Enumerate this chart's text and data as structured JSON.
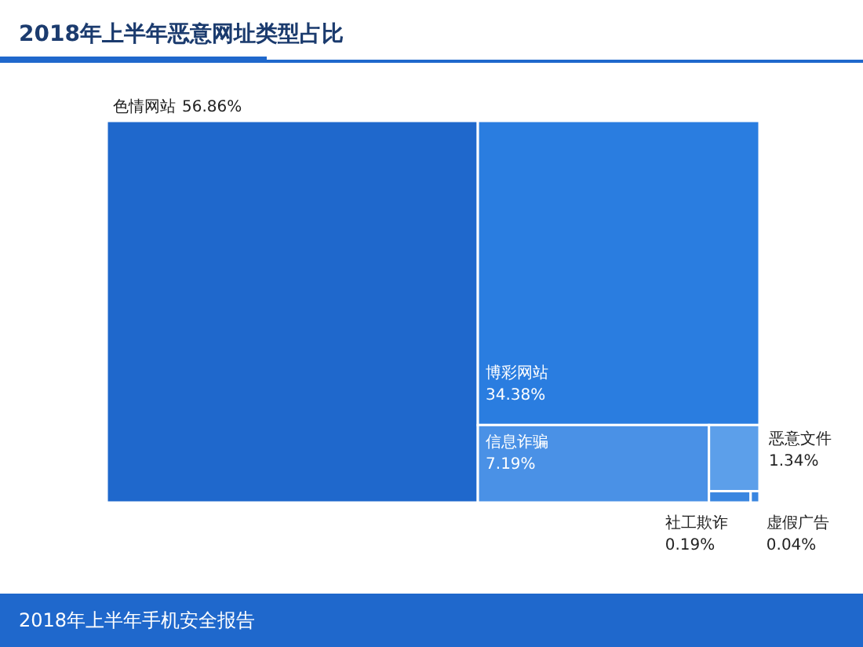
{
  "chart_data": {
    "type": "other",
    "title": "2018年上半年恶意网址类型占比",
    "categories": [
      "色情网站",
      "博彩网站",
      "信息诈骗",
      "恶意文件",
      "社工欺诈",
      "虚假广告"
    ],
    "values": [
      56.86,
      34.38,
      7.19,
      1.34,
      0.19,
      0.04
    ],
    "value_labels": [
      "56.86%",
      "34.38%",
      "7.19%",
      "1.34%",
      "0.19%",
      "0.04%"
    ],
    "colors": [
      "#1f68cc",
      "#2a7de0",
      "#4a91e6",
      "#5c9fea",
      "#3a86e0",
      "#3a86e0"
    ],
    "annotations": [
      "2018年上半年手机安全报告"
    ]
  }
}
